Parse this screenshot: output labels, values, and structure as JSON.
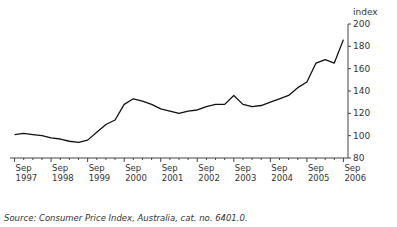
{
  "chart_data": {
    "type": "line",
    "y_label": "index",
    "source": "Source: Consumer Price Index, Australia, cat. no. 6401.0.",
    "categories": [
      "Sep\n1997",
      null,
      null,
      null,
      "Sep\n1998",
      null,
      null,
      null,
      "Sep\n1999",
      null,
      null,
      null,
      "Sep\n2000",
      null,
      null,
      null,
      "Sep\n2001",
      null,
      null,
      null,
      "Sep\n2002",
      null,
      null,
      null,
      "Sep\n2003",
      null,
      null,
      null,
      "Sep\n2004",
      null,
      null,
      null,
      "Sep\n2005",
      null,
      null,
      null,
      "Sep\n2006"
    ],
    "values": [
      101,
      102,
      101,
      100,
      98,
      97,
      95,
      94,
      96,
      103,
      110,
      114,
      128,
      133,
      131,
      128,
      124,
      122,
      120,
      122,
      123,
      126,
      128,
      128,
      136,
      128,
      126,
      127,
      130,
      133,
      136,
      143,
      148,
      165,
      168,
      165,
      186
    ],
    "color": "#111111",
    "ylim": [
      80,
      200
    ],
    "yticks": [
      80,
      100,
      120,
      140,
      160,
      180,
      200
    ],
    "grid": false
  }
}
